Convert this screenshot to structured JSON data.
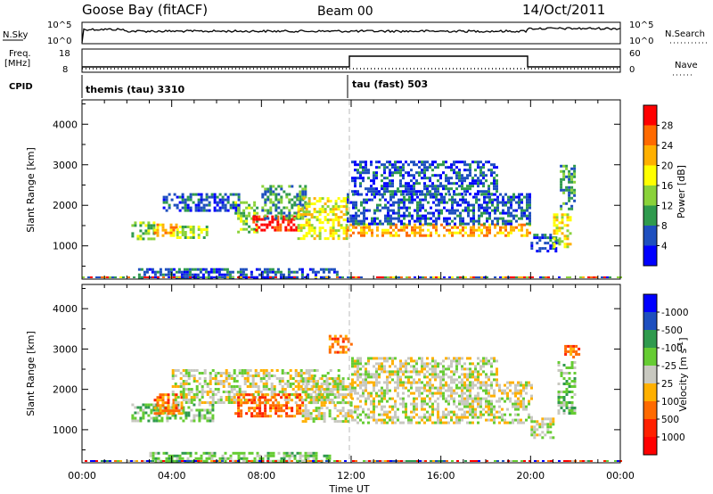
{
  "header": {
    "station": "Goose Bay (fitACF)",
    "beam": "Beam 00",
    "date": "14/Oct/2011"
  },
  "sky_panel": {
    "left_label": "N.Sky",
    "right_label": "N.Search",
    "ticks": [
      "10^5",
      "10^0"
    ],
    "right_ticks": [
      "10^5",
      "10^0"
    ]
  },
  "freq_panel": {
    "label_line1": "Freq.",
    "label_line2": "[MHz]",
    "left_ticks": [
      "18",
      "8"
    ],
    "right_ticks": [
      "60",
      "0"
    ],
    "right_label": "Nave"
  },
  "cpid_panel": {
    "label": "CPID",
    "segments": [
      {
        "name": "themis (tau) 3310",
        "start_hour": 0
      },
      {
        "name": "tau (fast) 503",
        "start_hour": 12
      }
    ]
  },
  "power_colorbar": {
    "title": "Power [dB]",
    "ticks": [
      "4",
      "8",
      "12",
      "16",
      "20",
      "24",
      "28"
    ],
    "colors": [
      "#0000ff",
      "#1e4fbf",
      "#2f9a4e",
      "#8ad23a",
      "#ffff00",
      "#ffb000",
      "#ff6a00",
      "#ff0000"
    ]
  },
  "velocity_colorbar": {
    "title": "Velocity [m s",
    "title_sup": "-1",
    "title_end": "]",
    "ticks": [
      "1000",
      "500",
      "100",
      "25",
      "-25",
      "-100",
      "-500",
      "-1000"
    ],
    "colors": [
      "#0000ff",
      "#1e4fbf",
      "#2f9a4e",
      "#66cc33",
      "#c8c8c0",
      "#ffb000",
      "#ff6a00",
      "#ff2000",
      "#ff0000"
    ]
  },
  "chart_data": {
    "type": "heatmap",
    "xlabel": "Time UT",
    "ylabel": "Slant Range [km]",
    "x_ticks": [
      "00:00",
      "04:00",
      "08:00",
      "12:00",
      "16:00",
      "20:00",
      "00:00"
    ],
    "y_ticks": [
      1000,
      2000,
      3000,
      4000
    ],
    "xlim": [
      0,
      24
    ],
    "ylim": [
      180,
      4600
    ],
    "power_regions": [
      {
        "t0": 2.2,
        "t1": 3.2,
        "r0": 1200,
        "r1": 1600,
        "level": 3
      },
      {
        "t0": 3.2,
        "t1": 4.2,
        "r0": 1250,
        "r1": 1550,
        "level": 5
      },
      {
        "t0": 4.2,
        "t1": 5.6,
        "r0": 1200,
        "r1": 1500,
        "level": 3
      },
      {
        "t0": 3.6,
        "t1": 7.0,
        "r0": 1900,
        "r1": 2300,
        "level": 1
      },
      {
        "t0": 6.8,
        "t1": 7.8,
        "r0": 1350,
        "r1": 2100,
        "level": 3
      },
      {
        "t0": 7.6,
        "t1": 9.6,
        "r0": 1400,
        "r1": 1750,
        "level": 7
      },
      {
        "t0": 8.0,
        "t1": 10.0,
        "r0": 1700,
        "r1": 2500,
        "level": 2
      },
      {
        "t0": 9.6,
        "t1": 11.8,
        "r0": 1200,
        "r1": 2200,
        "level": 4
      },
      {
        "t0": 11.8,
        "t1": 20.0,
        "r0": 1250,
        "r1": 1550,
        "level": 5
      },
      {
        "t0": 11.8,
        "t1": 20.0,
        "r0": 1550,
        "r1": 2300,
        "level": 1
      },
      {
        "t0": 12.0,
        "t1": 18.5,
        "r0": 2300,
        "r1": 3100,
        "level": 1
      },
      {
        "t0": 20.0,
        "t1": 21.2,
        "r0": 900,
        "r1": 1300,
        "level": 1
      },
      {
        "t0": 21.0,
        "t1": 21.8,
        "r0": 1000,
        "r1": 1800,
        "level": 4
      },
      {
        "t0": 21.3,
        "t1": 22.0,
        "r0": 1900,
        "r1": 3000,
        "level": 2
      },
      {
        "t0": 2.5,
        "t1": 11.5,
        "r0": 200,
        "r1": 450,
        "level": 1
      }
    ],
    "velocity_regions": [
      {
        "t0": 2.2,
        "t1": 5.8,
        "r0": 1200,
        "r1": 1650,
        "level": 3
      },
      {
        "t0": 3.2,
        "t1": 4.4,
        "r0": 1400,
        "r1": 1900,
        "level": 6
      },
      {
        "t0": 4.0,
        "t1": 11.5,
        "r0": 1700,
        "r1": 2500,
        "level": 4
      },
      {
        "t0": 6.8,
        "t1": 9.8,
        "r0": 1350,
        "r1": 1900,
        "level": 6
      },
      {
        "t0": 9.8,
        "t1": 12.0,
        "r0": 1200,
        "r1": 2300,
        "level": 4
      },
      {
        "t0": 11.0,
        "t1": 12.0,
        "r0": 2900,
        "r1": 3350,
        "level": 6
      },
      {
        "t0": 12.0,
        "t1": 20.0,
        "r0": 1150,
        "r1": 2200,
        "level": 4
      },
      {
        "t0": 12.0,
        "t1": 18.5,
        "r0": 2200,
        "r1": 2800,
        "level": 4
      },
      {
        "t0": 20.0,
        "t1": 21.0,
        "r0": 800,
        "r1": 1300,
        "level": 4
      },
      {
        "t0": 21.2,
        "t1": 22.0,
        "r0": 1400,
        "r1": 2700,
        "level": 3
      },
      {
        "t0": 21.5,
        "t1": 22.2,
        "r0": 2800,
        "r1": 3100,
        "level": 6
      },
      {
        "t0": 3.0,
        "t1": 11.0,
        "r0": 200,
        "r1": 450,
        "level": 3
      }
    ]
  }
}
